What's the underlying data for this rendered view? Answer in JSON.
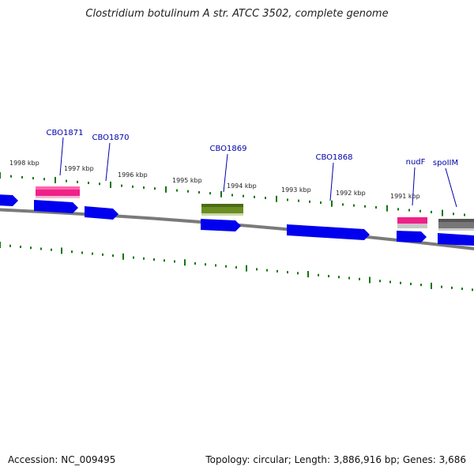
{
  "title": "Clostridium botulinum A str. ATCC 3502, complete genome",
  "footer": {
    "accession": "Accession: NC_009495",
    "summary": "Topology: circular; Length: 3,886,916 bp; Genes: 3,686"
  },
  "ticks": [
    {
      "label": "1998 kbp"
    },
    {
      "label": "1997 kbp"
    },
    {
      "label": "1996 kbp"
    },
    {
      "label": "1995 kbp"
    },
    {
      "label": "1994 kbp"
    },
    {
      "label": "1993 kbp"
    },
    {
      "label": "1992 kbp"
    },
    {
      "label": "1991 kbp"
    }
  ],
  "gene_labels": [
    {
      "label": "CBO1871"
    },
    {
      "label": "CBO1870"
    },
    {
      "label": "CBO1869"
    },
    {
      "label": "CBO1868"
    },
    {
      "label": "nudF"
    },
    {
      "label": "spoIIM"
    }
  ],
  "colors": {
    "gene_blue": "#0000ee",
    "feature_pink": "#ee2288",
    "feature_olive": "#6b8e23",
    "feature_gray": "#777777",
    "tick_green": "#117711",
    "backbone_gray": "#7a7a7a",
    "label_blue": "#0000aa"
  }
}
